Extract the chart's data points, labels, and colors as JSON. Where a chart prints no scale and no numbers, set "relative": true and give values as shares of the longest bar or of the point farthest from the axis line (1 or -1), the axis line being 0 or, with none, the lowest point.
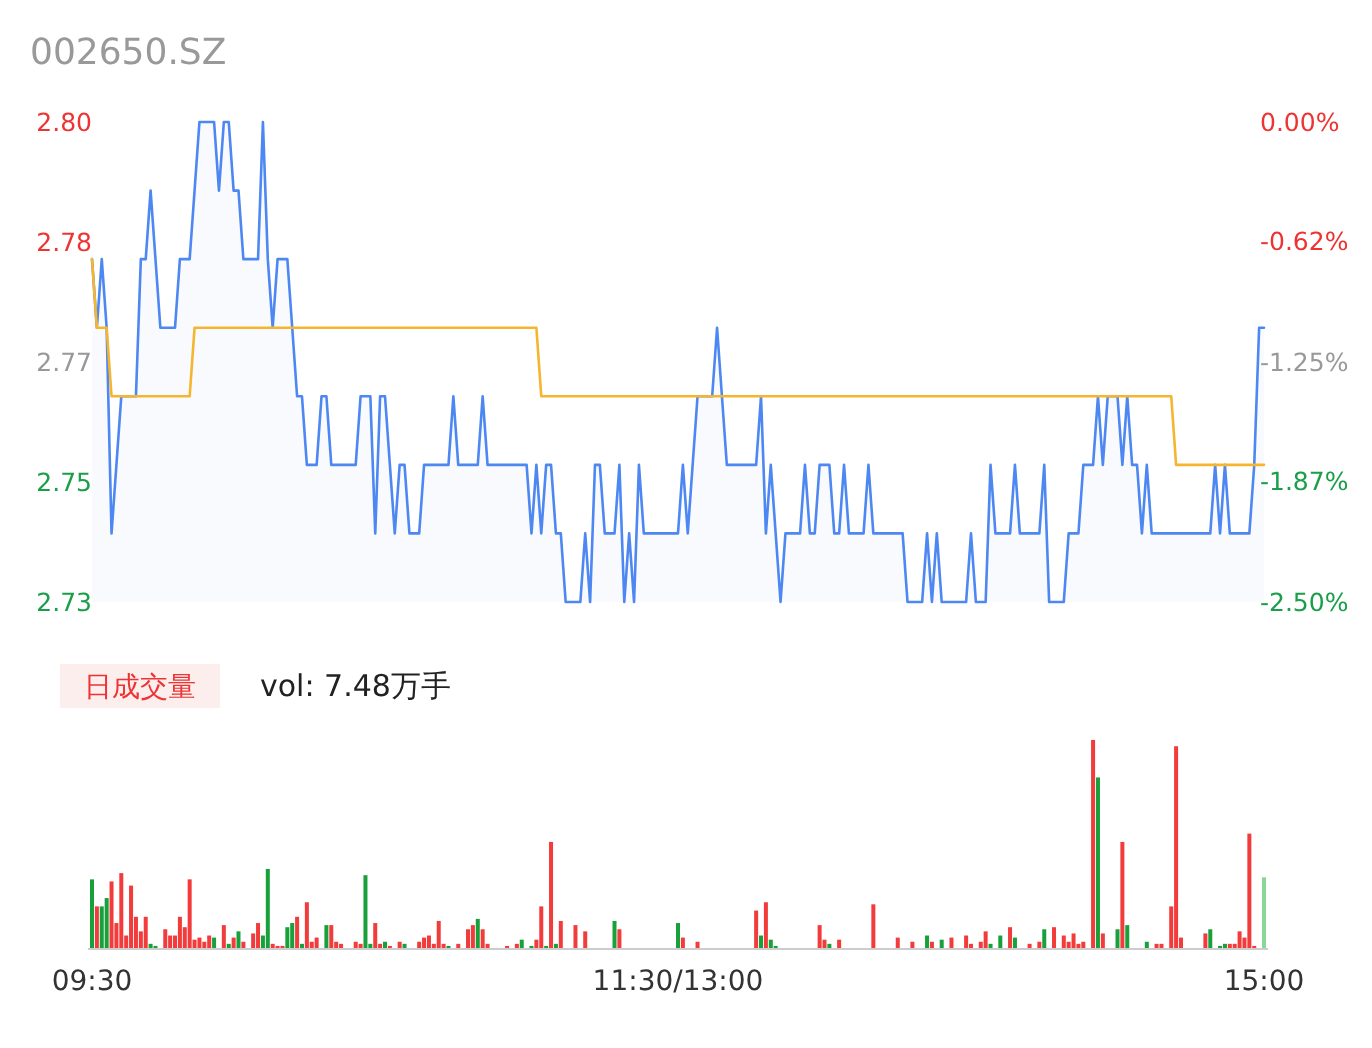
{
  "chart_data": [
    {
      "type": "line",
      "title": "002650.SZ",
      "categories": [
        null,
        null,
        null,
        null,
        null,
        null,
        null,
        null,
        null,
        null,
        null,
        null,
        null,
        null,
        null,
        null,
        null,
        null,
        null,
        null,
        null,
        null,
        null,
        null,
        null,
        null,
        null,
        null,
        null,
        null,
        null,
        null,
        null,
        null,
        null,
        null,
        null,
        null,
        null,
        null,
        null,
        null,
        null,
        null,
        null,
        null,
        null,
        null,
        null,
        null,
        null,
        null,
        null,
        null,
        null,
        null,
        null,
        null,
        null,
        null,
        null,
        null,
        null,
        null,
        null,
        null,
        null,
        null,
        null,
        null,
        null,
        null,
        null,
        null,
        null,
        null,
        null,
        null,
        null,
        null,
        null,
        null,
        null,
        null,
        null,
        null,
        null,
        null,
        null,
        null,
        null,
        null,
        null,
        null,
        null,
        null,
        null,
        null,
        null,
        null,
        null,
        null,
        null,
        null,
        null,
        null,
        null,
        null,
        null,
        null,
        null,
        null,
        null,
        null,
        null,
        null,
        null,
        null,
        null,
        null,
        null,
        null,
        null,
        null,
        null,
        null,
        null,
        null,
        null,
        null,
        null,
        null,
        null,
        null,
        null,
        null,
        null,
        null,
        null,
        null,
        null,
        null,
        null,
        null,
        null,
        null,
        null,
        null,
        null,
        null,
        null,
        null,
        null,
        null,
        null,
        null,
        null,
        null,
        null,
        null,
        null,
        null,
        null,
        null,
        null,
        null,
        null,
        null,
        null,
        null,
        null,
        null,
        null,
        null,
        null,
        null,
        null,
        null,
        null,
        null,
        null,
        null,
        null,
        null,
        null,
        null,
        null,
        null,
        null,
        null,
        null,
        null,
        null,
        null,
        null,
        null,
        null,
        null,
        null,
        null,
        null,
        null,
        null,
        null,
        null,
        null,
        null,
        null,
        null,
        null,
        null,
        null,
        null,
        null,
        null,
        null,
        null,
        null,
        null,
        null,
        null,
        null,
        null,
        null,
        null,
        null,
        null,
        null,
        null,
        null,
        null,
        null,
        null,
        null,
        null,
        null,
        null,
        null,
        null,
        null,
        null
      ],
      "ylim": [
        2.73,
        2.8
      ],
      "yticks": [
        {
          "value": 2.8,
          "label": "2.80"
        },
        {
          "value": 2.7825,
          "label": "2.78"
        },
        {
          "value": 2.765,
          "label": "2.77"
        },
        {
          "value": 2.7475,
          "label": "2.75"
        },
        {
          "value": 2.73,
          "label": "2.73"
        }
      ],
      "y2lim": [
        -2.5,
        0
      ],
      "y2ticks": [
        {
          "value": 0,
          "label": "0.00%"
        },
        {
          "value": -0.62,
          "label": "-0.62%"
        },
        {
          "value": -1.25,
          "label": "-1.25%"
        },
        {
          "value": -1.87,
          "label": "-1.87%"
        },
        {
          "value": -2.5,
          "label": "-2.50%"
        }
      ],
      "tick_labels": "y",
      "series": [
        {
          "type": "area",
          "color": "#4d87f2",
          "values": [
            2.78,
            2.77,
            2.78,
            2.77,
            2.74,
            2.75,
            2.76,
            2.76,
            2.76,
            2.76,
            2.78,
            2.78,
            2.79,
            2.78,
            2.77,
            2.77,
            2.77,
            2.77,
            2.78,
            2.78,
            2.78,
            2.79,
            2.8,
            2.8,
            2.8,
            2.8,
            2.79,
            2.8,
            2.8,
            2.79,
            2.79,
            2.78,
            2.78,
            2.78,
            2.78,
            2.8,
            2.78,
            2.77,
            2.78,
            2.78,
            2.78,
            2.77,
            2.76,
            2.76,
            2.75,
            2.75,
            2.75,
            2.76,
            2.76,
            2.75,
            2.75,
            2.75,
            2.75,
            2.75,
            2.75,
            2.76,
            2.76,
            2.76,
            2.74,
            2.76,
            2.76,
            2.75,
            2.74,
            2.75,
            2.75,
            2.74,
            2.74,
            2.74,
            2.75,
            2.75,
            2.75,
            2.75,
            2.75,
            2.75,
            2.76,
            2.75,
            2.75,
            2.75,
            2.75,
            2.75,
            2.76,
            2.75,
            2.75,
            2.75,
            2.75,
            2.75,
            2.75,
            2.75,
            2.75,
            2.75,
            2.74,
            2.75,
            2.74,
            2.75,
            2.75,
            2.74,
            2.74,
            2.73,
            2.73,
            2.73,
            2.73,
            2.74,
            2.73,
            2.75,
            2.75,
            2.74,
            2.74,
            2.74,
            2.75,
            2.73,
            2.74,
            2.73,
            2.75,
            2.74,
            2.74,
            2.74,
            2.74,
            2.74,
            2.74,
            2.74,
            2.74,
            2.75,
            2.74,
            2.75,
            2.76,
            2.76,
            2.76,
            2.76,
            2.77,
            2.76,
            2.75,
            2.75,
            2.75,
            2.75,
            2.75,
            2.75,
            2.75,
            2.76,
            2.74,
            2.75,
            2.74,
            2.73,
            2.74,
            2.74,
            2.74,
            2.74,
            2.75,
            2.74,
            2.74,
            2.75,
            2.75,
            2.75,
            2.74,
            2.74,
            2.75,
            2.74,
            2.74,
            2.74,
            2.74,
            2.75,
            2.74,
            2.74,
            2.74,
            2.74,
            2.74,
            2.74,
            2.74,
            2.73,
            2.73,
            2.73,
            2.73,
            2.74,
            2.73,
            2.74,
            2.73,
            2.73,
            2.73,
            2.73,
            2.73,
            2.73,
            2.74,
            2.73,
            2.73,
            2.73,
            2.75,
            2.74,
            2.74,
            2.74,
            2.74,
            2.75,
            2.74,
            2.74,
            2.74,
            2.74,
            2.74,
            2.75,
            2.73,
            2.73,
            2.73,
            2.73,
            2.74,
            2.74,
            2.74,
            2.75,
            2.75,
            2.75,
            2.76,
            2.75,
            2.76,
            2.76,
            2.76,
            2.75,
            2.76,
            2.75,
            2.75,
            2.74,
            2.75,
            2.74,
            2.74,
            2.74,
            2.74,
            2.74,
            2.74,
            2.74,
            2.74,
            2.74,
            2.74,
            2.74,
            2.74,
            2.74,
            2.75,
            2.74,
            2.75,
            2.74,
            2.74,
            2.74,
            2.74,
            2.74,
            2.75,
            2.77,
            2.77
          ]
        },
        {
          "type": "line",
          "color": "#f5b52e",
          "values": [
            2.78,
            2.77,
            2.77,
            2.77,
            2.76,
            2.76,
            2.76,
            2.76,
            2.76,
            2.76,
            2.76,
            2.76,
            2.76,
            2.76,
            2.76,
            2.76,
            2.76,
            2.76,
            2.76,
            2.76,
            2.76,
            2.77,
            2.77,
            2.77,
            2.77,
            2.77,
            2.77,
            2.77,
            2.77,
            2.77,
            2.77,
            2.77,
            2.77,
            2.77,
            2.77,
            2.77,
            2.77,
            2.77,
            2.77,
            2.77,
            2.77,
            2.77,
            2.77,
            2.77,
            2.77,
            2.77,
            2.77,
            2.77,
            2.77,
            2.77,
            2.77,
            2.77,
            2.77,
            2.77,
            2.77,
            2.77,
            2.77,
            2.77,
            2.77,
            2.77,
            2.77,
            2.77,
            2.77,
            2.77,
            2.77,
            2.77,
            2.77,
            2.77,
            2.77,
            2.77,
            2.77,
            2.77,
            2.77,
            2.77,
            2.77,
            2.77,
            2.77,
            2.77,
            2.77,
            2.77,
            2.77,
            2.77,
            2.77,
            2.77,
            2.77,
            2.77,
            2.77,
            2.77,
            2.77,
            2.77,
            2.77,
            2.77,
            2.76,
            2.76,
            2.76,
            2.76,
            2.76,
            2.76,
            2.76,
            2.76,
            2.76,
            2.76,
            2.76,
            2.76,
            2.76,
            2.76,
            2.76,
            2.76,
            2.76,
            2.76,
            2.76,
            2.76,
            2.76,
            2.76,
            2.76,
            2.76,
            2.76,
            2.76,
            2.76,
            2.76,
            2.76,
            2.76,
            2.76,
            2.76,
            2.76,
            2.76,
            2.76,
            2.76,
            2.76,
            2.76,
            2.76,
            2.76,
            2.76,
            2.76,
            2.76,
            2.76,
            2.76,
            2.76,
            2.76,
            2.76,
            2.76,
            2.76,
            2.76,
            2.76,
            2.76,
            2.76,
            2.76,
            2.76,
            2.76,
            2.76,
            2.76,
            2.76,
            2.76,
            2.76,
            2.76,
            2.76,
            2.76,
            2.76,
            2.76,
            2.76,
            2.76,
            2.76,
            2.76,
            2.76,
            2.76,
            2.76,
            2.76,
            2.76,
            2.76,
            2.76,
            2.76,
            2.76,
            2.76,
            2.76,
            2.76,
            2.76,
            2.76,
            2.76,
            2.76,
            2.76,
            2.76,
            2.76,
            2.76,
            2.76,
            2.76,
            2.76,
            2.76,
            2.76,
            2.76,
            2.76,
            2.76,
            2.76,
            2.76,
            2.76,
            2.76,
            2.76,
            2.76,
            2.76,
            2.76,
            2.76,
            2.76,
            2.76,
            2.76,
            2.76,
            2.76,
            2.76,
            2.76,
            2.76,
            2.76,
            2.76,
            2.76,
            2.76,
            2.76,
            2.76,
            2.76,
            2.76,
            2.76,
            2.76,
            2.76,
            2.76,
            2.76,
            2.76,
            2.75,
            2.75,
            2.75,
            2.75,
            2.75,
            2.75,
            2.75,
            2.75,
            2.75,
            2.75,
            2.75,
            2.75,
            2.75,
            2.75,
            2.75,
            2.75,
            2.75,
            2.75,
            2.75
          ]
        }
      ]
    },
    {
      "type": "bar",
      "relative": true,
      "categories": [
        "09:30",
        null,
        null,
        null,
        null,
        null,
        null,
        null,
        null,
        null,
        null,
        null,
        null,
        null,
        null,
        null,
        null,
        null,
        null,
        null,
        null,
        null,
        null,
        null,
        null,
        null,
        null,
        null,
        null,
        null,
        null,
        null,
        null,
        null,
        null,
        null,
        null,
        null,
        null,
        null,
        null,
        null,
        null,
        null,
        null,
        null,
        null,
        null,
        null,
        null,
        null,
        null,
        null,
        null,
        null,
        null,
        null,
        null,
        null,
        null,
        null,
        null,
        null,
        null,
        null,
        null,
        null,
        null,
        null,
        null,
        null,
        null,
        null,
        null,
        null,
        null,
        null,
        null,
        null,
        null,
        null,
        null,
        null,
        null,
        null,
        null,
        null,
        null,
        null,
        null,
        null,
        null,
        null,
        null,
        null,
        null,
        null,
        null,
        null,
        null,
        null,
        null,
        null,
        null,
        null,
        null,
        null,
        null,
        null,
        null,
        null,
        null,
        null,
        null,
        null,
        null,
        null,
        null,
        null,
        null,
        "11:30/13:00",
        null,
        null,
        null,
        null,
        null,
        null,
        null,
        null,
        null,
        null,
        null,
        null,
        null,
        null,
        null,
        null,
        null,
        null,
        null,
        null,
        null,
        null,
        null,
        null,
        null,
        null,
        null,
        null,
        null,
        null,
        null,
        null,
        null,
        null,
        null,
        null,
        null,
        null,
        null,
        null,
        null,
        null,
        null,
        null,
        null,
        null,
        null,
        null,
        null,
        null,
        null,
        null,
        null,
        null,
        null,
        null,
        null,
        null,
        null,
        null,
        null,
        null,
        null,
        null,
        null,
        null,
        null,
        null,
        null,
        null,
        null,
        null,
        null,
        null,
        null,
        null,
        null,
        null,
        null,
        null,
        null,
        null,
        null,
        null,
        null,
        null,
        null,
        null,
        null,
        null,
        null,
        null,
        null,
        null,
        null,
        null,
        null,
        null,
        null,
        null,
        null,
        null,
        null,
        null,
        null,
        null,
        null,
        null,
        null,
        null,
        null,
        null,
        null,
        null,
        null,
        null,
        null,
        null,
        null,
        "15:00"
      ],
      "tick_labels": "x",
      "annotations": [
        "日成交量",
        "vol: 7.48万手"
      ],
      "values": [
        0.33,
        0.2,
        0.2,
        0.24,
        0.32,
        0.12,
        0.36,
        0.06,
        0.3,
        0.15,
        0.08,
        0.15,
        0.02,
        0.01,
        0,
        0.09,
        0.06,
        0.06,
        0.15,
        0.1,
        0.33,
        0.04,
        0.05,
        0.03,
        0.06,
        0.05,
        0,
        0.11,
        0.02,
        0.05,
        0.08,
        0.03,
        0,
        0.07,
        0.12,
        0.06,
        0.38,
        0.02,
        0.01,
        0.01,
        0.1,
        0.12,
        0.15,
        0.02,
        0.22,
        0.03,
        0.05,
        0,
        0.11,
        0.11,
        0.03,
        0.02,
        0,
        0,
        0.03,
        0.02,
        0.35,
        0.02,
        0.12,
        0.02,
        0.03,
        0.01,
        0,
        0.03,
        0.02,
        0,
        0,
        0.03,
        0.05,
        0.06,
        0.02,
        0.13,
        0.02,
        0.01,
        0,
        0.02,
        0,
        0.09,
        0.11,
        0.14,
        0.09,
        0.02,
        0,
        0,
        0,
        0.01,
        0,
        0.02,
        0.04,
        0,
        0.01,
        0.04,
        0.2,
        0.01,
        0.51,
        0.02,
        0.13,
        0,
        0,
        0.11,
        0,
        0.08,
        0,
        0,
        0,
        0,
        0,
        0.13,
        0.09,
        0,
        0,
        0,
        0,
        0,
        0,
        0,
        0,
        0,
        0,
        0,
        0.12,
        0.05,
        0,
        0,
        0.03,
        0,
        0,
        0,
        0,
        0,
        0,
        0,
        0,
        0,
        0,
        0,
        0.18,
        0.06,
        0.22,
        0.04,
        0.01,
        0,
        0,
        0,
        0,
        0,
        0,
        0,
        0,
        0.11,
        0.04,
        0.02,
        0,
        0.04,
        0,
        0,
        0,
        0,
        0,
        0,
        0.21,
        0,
        0,
        0,
        0,
        0.05,
        0,
        0,
        0.03,
        0,
        0,
        0.06,
        0.03,
        0,
        0.04,
        0,
        0.05,
        0,
        0,
        0.06,
        0.02,
        0,
        0.03,
        0.08,
        0.02,
        0,
        0.06,
        0,
        0.1,
        0.05,
        0,
        0,
        0.02,
        0,
        0.03,
        0.09,
        0,
        0.1,
        0,
        0.06,
        0.03,
        0.07,
        0.02,
        0.03,
        0,
        1.0,
        0.82,
        0.07,
        0,
        0,
        0.09,
        0.51,
        0.11,
        0,
        0,
        0,
        0.03,
        0,
        0.02,
        0.02,
        0,
        0.2,
        0.97,
        0.05,
        0,
        0,
        0,
        0,
        0.07,
        0.09,
        0,
        0.01,
        0.02,
        0.02,
        0.02,
        0.08,
        0.05,
        0.55,
        0.01,
        0,
        0.34
      ],
      "colors": [
        "#18a03a",
        "#f23b3b",
        "#18a03a",
        "#18a03a",
        "#f23b3b",
        "#f23b3b",
        "#f23b3b",
        "#f23b3b",
        "#f23b3b",
        "#f23b3b",
        "#f23b3b",
        "#f23b3b",
        "#18a03a",
        "#18a03a",
        "#f23b3b",
        "#f23b3b",
        "#f23b3b",
        "#f23b3b",
        "#f23b3b",
        "#f23b3b",
        "#f23b3b",
        "#f23b3b",
        "#f23b3b",
        "#f23b3b",
        "#f23b3b",
        "#18a03a",
        "#f23b3b",
        "#f23b3b",
        "#18a03a",
        "#f23b3b",
        "#18a03a",
        "#f23b3b",
        "#f23b3b",
        "#f23b3b",
        "#f23b3b",
        "#18a03a",
        "#18a03a",
        "#f23b3b",
        "#f23b3b",
        "#f23b3b",
        "#18a03a",
        "#18a03a",
        "#f23b3b",
        "#18a03a",
        "#f23b3b",
        "#f23b3b",
        "#f23b3b",
        "#f23b3b",
        "#18a03a",
        "#f23b3b",
        "#f23b3b",
        "#f23b3b",
        "#f23b3b",
        "#f23b3b",
        "#f23b3b",
        "#f23b3b",
        "#18a03a",
        "#18a03a",
        "#f23b3b",
        "#f23b3b",
        "#18a03a",
        "#f23b3b",
        "#f23b3b",
        "#f23b3b",
        "#18a03a",
        "#f23b3b",
        "#f23b3b",
        "#f23b3b",
        "#f23b3b",
        "#f23b3b",
        "#f23b3b",
        "#f23b3b",
        "#f23b3b",
        "#18a03a",
        "#f23b3b",
        "#f23b3b",
        "#f23b3b",
        "#f23b3b",
        "#f23b3b",
        "#18a03a",
        "#f23b3b",
        "#f23b3b",
        "#f23b3b",
        "#f23b3b",
        "#f23b3b",
        "#f23b3b",
        "#f23b3b",
        "#f23b3b",
        "#18a03a",
        "#f23b3b",
        "#18a03a",
        "#f23b3b",
        "#f23b3b",
        "#18a03a",
        "#f23b3b",
        "#18a03a",
        "#f23b3b",
        "#f23b3b",
        "#f23b3b",
        "#f23b3b",
        "#f23b3b",
        "#f23b3b",
        "#f23b3b",
        "#f23b3b",
        "#f23b3b",
        "#f23b3b",
        "#f23b3b",
        "#18a03a",
        "#f23b3b",
        "#f23b3b",
        "#f23b3b",
        "#f23b3b",
        "#f23b3b",
        "#f23b3b",
        "#f23b3b",
        "#f23b3b",
        "#f23b3b",
        "#f23b3b",
        "#f23b3b",
        "#f23b3b",
        "#18a03a",
        "#f23b3b",
        "#f23b3b",
        "#f23b3b",
        "#f23b3b",
        "#f23b3b",
        "#f23b3b",
        "#f23b3b",
        "#f23b3b",
        "#f23b3b",
        "#f23b3b",
        "#f23b3b",
        "#f23b3b",
        "#f23b3b",
        "#f23b3b",
        "#f23b3b",
        "#f23b3b",
        "#18a03a",
        "#f23b3b",
        "#18a03a",
        "#18a03a",
        "#f23b3b",
        "#f23b3b",
        "#f23b3b",
        "#f23b3b",
        "#f23b3b",
        "#f23b3b",
        "#f23b3b",
        "#f23b3b",
        "#f23b3b",
        "#f23b3b",
        "#18a03a",
        "#f23b3b",
        "#f23b3b",
        "#f23b3b",
        "#f23b3b",
        "#f23b3b",
        "#f23b3b",
        "#f23b3b",
        "#f23b3b",
        "#f23b3b",
        "#f23b3b",
        "#f23b3b",
        "#f23b3b",
        "#f23b3b",
        "#f23b3b",
        "#f23b3b",
        "#f23b3b",
        "#f23b3b",
        "#f23b3b",
        "#f23b3b",
        "#18a03a",
        "#f23b3b",
        "#f23b3b",
        "#18a03a",
        "#f23b3b",
        "#f23b3b",
        "#f23b3b",
        "#f23b3b",
        "#f23b3b",
        "#f23b3b",
        "#f23b3b",
        "#f23b3b",
        "#f23b3b",
        "#18a03a",
        "#f23b3b",
        "#18a03a",
        "#f23b3b",
        "#f23b3b",
        "#18a03a",
        "#f23b3b",
        "#f23b3b",
        "#f23b3b",
        "#f23b3b",
        "#f23b3b",
        "#18a03a",
        "#f23b3b",
        "#f23b3b",
        "#f23b3b",
        "#f23b3b",
        "#f23b3b",
        "#f23b3b",
        "#f23b3b",
        "#f23b3b",
        "#f23b3b",
        "#f23b3b",
        "#18a03a",
        "#f23b3b",
        "#f23b3b",
        "#f23b3b",
        "#18a03a",
        "#f23b3b",
        "#18a03a",
        "#f23b3b",
        "#f23b3b",
        "#f23b3b",
        "#18a03a",
        "#f23b3b",
        "#f23b3b",
        "#f23b3b",
        "#f23b3b",
        "#f23b3b",
        "#f23b3b",
        "#f23b3b",
        "#f23b3b",
        "#f23b3b",
        "#f23b3b",
        "#f23b3b",
        "#f23b3b",
        "#18a03a",
        "#f23b3b",
        "#18a03a",
        "#18a03a",
        "#f23b3b",
        "#f23b3b",
        "#f23b3b",
        "#f23b3b",
        "#f23b3b",
        "#f23b3b",
        "#f23b3b",
        "#88d89a"
      ]
    }
  ]
}
